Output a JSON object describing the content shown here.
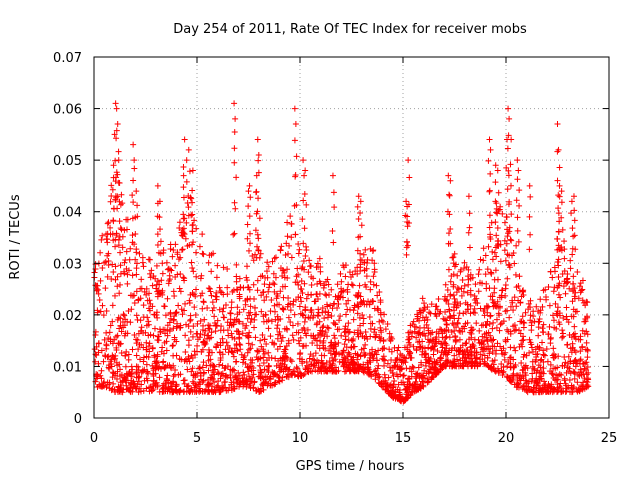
{
  "chart_data": {
    "type": "scatter",
    "title": "Day 254 of 2011, Rate Of TEC Index for receiver mobs",
    "xlabel": "GPS time / hours",
    "ylabel": "ROTI / TECUs",
    "xlim": [
      0,
      25
    ],
    "ylim": [
      0,
      0.07
    ],
    "grid": true,
    "marker": "plus",
    "color": "#ff0000",
    "x_ticks": [
      {
        "value": 0,
        "label": "0"
      },
      {
        "value": 5,
        "label": "5"
      },
      {
        "value": 10,
        "label": "10"
      },
      {
        "value": 15,
        "label": "15"
      },
      {
        "value": 20,
        "label": "20"
      },
      {
        "value": 25,
        "label": "25"
      }
    ],
    "y_ticks": [
      {
        "value": 0,
        "label": "0"
      },
      {
        "value": 0.01,
        "label": "0.01"
      },
      {
        "value": 0.02,
        "label": "0.02"
      },
      {
        "value": 0.03,
        "label": "0.03"
      },
      {
        "value": 0.04,
        "label": "0.04"
      },
      {
        "value": 0.05,
        "label": "0.05"
      },
      {
        "value": 0.06,
        "label": "0.06"
      },
      {
        "value": 0.07,
        "label": "0.07"
      }
    ],
    "envelope": {
      "description": "Approximate upper bound of the dense ROTI scatter by hour",
      "x": [
        0,
        0.5,
        1,
        1.5,
        2,
        2.5,
        3,
        3.5,
        4,
        4.5,
        5,
        5.5,
        6,
        6.5,
        7,
        7.5,
        8,
        8.5,
        9,
        9.5,
        10,
        10.5,
        11,
        11.5,
        12,
        12.5,
        13,
        13.5,
        14,
        14.5,
        15,
        15.5,
        16,
        16.5,
        17,
        17.5,
        18,
        18.5,
        19,
        19.5,
        20,
        20.5,
        21,
        21.5,
        22,
        22.5,
        23,
        23.5,
        24
      ],
      "y_high": [
        0.03,
        0.037,
        0.05,
        0.04,
        0.035,
        0.033,
        0.03,
        0.034,
        0.035,
        0.045,
        0.04,
        0.036,
        0.03,
        0.03,
        0.031,
        0.03,
        0.035,
        0.03,
        0.032,
        0.04,
        0.034,
        0.032,
        0.032,
        0.025,
        0.03,
        0.03,
        0.033,
        0.035,
        0.022,
        0.016,
        0.013,
        0.02,
        0.024,
        0.022,
        0.025,
        0.035,
        0.03,
        0.03,
        0.034,
        0.042,
        0.04,
        0.035,
        0.022,
        0.024,
        0.028,
        0.035,
        0.035,
        0.032,
        0.022
      ],
      "y_low": [
        0.006,
        0.006,
        0.005,
        0.005,
        0.005,
        0.005,
        0.005,
        0.005,
        0.005,
        0.005,
        0.005,
        0.005,
        0.005,
        0.005,
        0.006,
        0.006,
        0.005,
        0.006,
        0.007,
        0.008,
        0.008,
        0.009,
        0.009,
        0.009,
        0.009,
        0.009,
        0.009,
        0.008,
        0.006,
        0.004,
        0.003,
        0.005,
        0.006,
        0.008,
        0.01,
        0.01,
        0.01,
        0.01,
        0.01,
        0.009,
        0.008,
        0.006,
        0.005,
        0.005,
        0.005,
        0.005,
        0.005,
        0.005,
        0.006
      ]
    },
    "spikes": [
      {
        "x": 1.05,
        "y": 0.061
      },
      {
        "x": 1.1,
        "y": 0.06
      },
      {
        "x": 1.15,
        "y": 0.057
      },
      {
        "x": 1.0,
        "y": 0.055
      },
      {
        "x": 1.2,
        "y": 0.05
      },
      {
        "x": 0.95,
        "y": 0.049
      },
      {
        "x": 1.9,
        "y": 0.053
      },
      {
        "x": 1.95,
        "y": 0.05
      },
      {
        "x": 2.05,
        "y": 0.044
      },
      {
        "x": 3.1,
        "y": 0.045
      },
      {
        "x": 3.2,
        "y": 0.042
      },
      {
        "x": 4.4,
        "y": 0.054
      },
      {
        "x": 4.5,
        "y": 0.05
      },
      {
        "x": 4.6,
        "y": 0.052
      },
      {
        "x": 4.8,
        "y": 0.048
      },
      {
        "x": 4.35,
        "y": 0.047
      },
      {
        "x": 6.8,
        "y": 0.061
      },
      {
        "x": 6.85,
        "y": 0.058
      },
      {
        "x": 7.5,
        "y": 0.044
      },
      {
        "x": 7.55,
        "y": 0.045
      },
      {
        "x": 7.95,
        "y": 0.054
      },
      {
        "x": 8.0,
        "y": 0.051
      },
      {
        "x": 7.9,
        "y": 0.047
      },
      {
        "x": 9.75,
        "y": 0.06
      },
      {
        "x": 9.8,
        "y": 0.057
      },
      {
        "x": 10.15,
        "y": 0.05
      },
      {
        "x": 10.25,
        "y": 0.048
      },
      {
        "x": 11.6,
        "y": 0.047
      },
      {
        "x": 12.85,
        "y": 0.043
      },
      {
        "x": 12.95,
        "y": 0.042
      },
      {
        "x": 15.25,
        "y": 0.05
      },
      {
        "x": 15.15,
        "y": 0.042
      },
      {
        "x": 15.2,
        "y": 0.041
      },
      {
        "x": 17.2,
        "y": 0.047
      },
      {
        "x": 17.3,
        "y": 0.046
      },
      {
        "x": 18.2,
        "y": 0.043
      },
      {
        "x": 19.2,
        "y": 0.054
      },
      {
        "x": 19.25,
        "y": 0.052
      },
      {
        "x": 19.5,
        "y": 0.049
      },
      {
        "x": 19.6,
        "y": 0.048
      },
      {
        "x": 20.1,
        "y": 0.06
      },
      {
        "x": 20.15,
        "y": 0.058
      },
      {
        "x": 20.05,
        "y": 0.054
      },
      {
        "x": 20.25,
        "y": 0.054
      },
      {
        "x": 20.6,
        "y": 0.048
      },
      {
        "x": 20.55,
        "y": 0.05
      },
      {
        "x": 21.15,
        "y": 0.045
      },
      {
        "x": 22.5,
        "y": 0.057
      },
      {
        "x": 22.55,
        "y": 0.052
      },
      {
        "x": 22.6,
        "y": 0.045
      },
      {
        "x": 22.7,
        "y": 0.044
      },
      {
        "x": 23.3,
        "y": 0.043
      },
      {
        "x": 23.2,
        "y": 0.042
      }
    ]
  }
}
